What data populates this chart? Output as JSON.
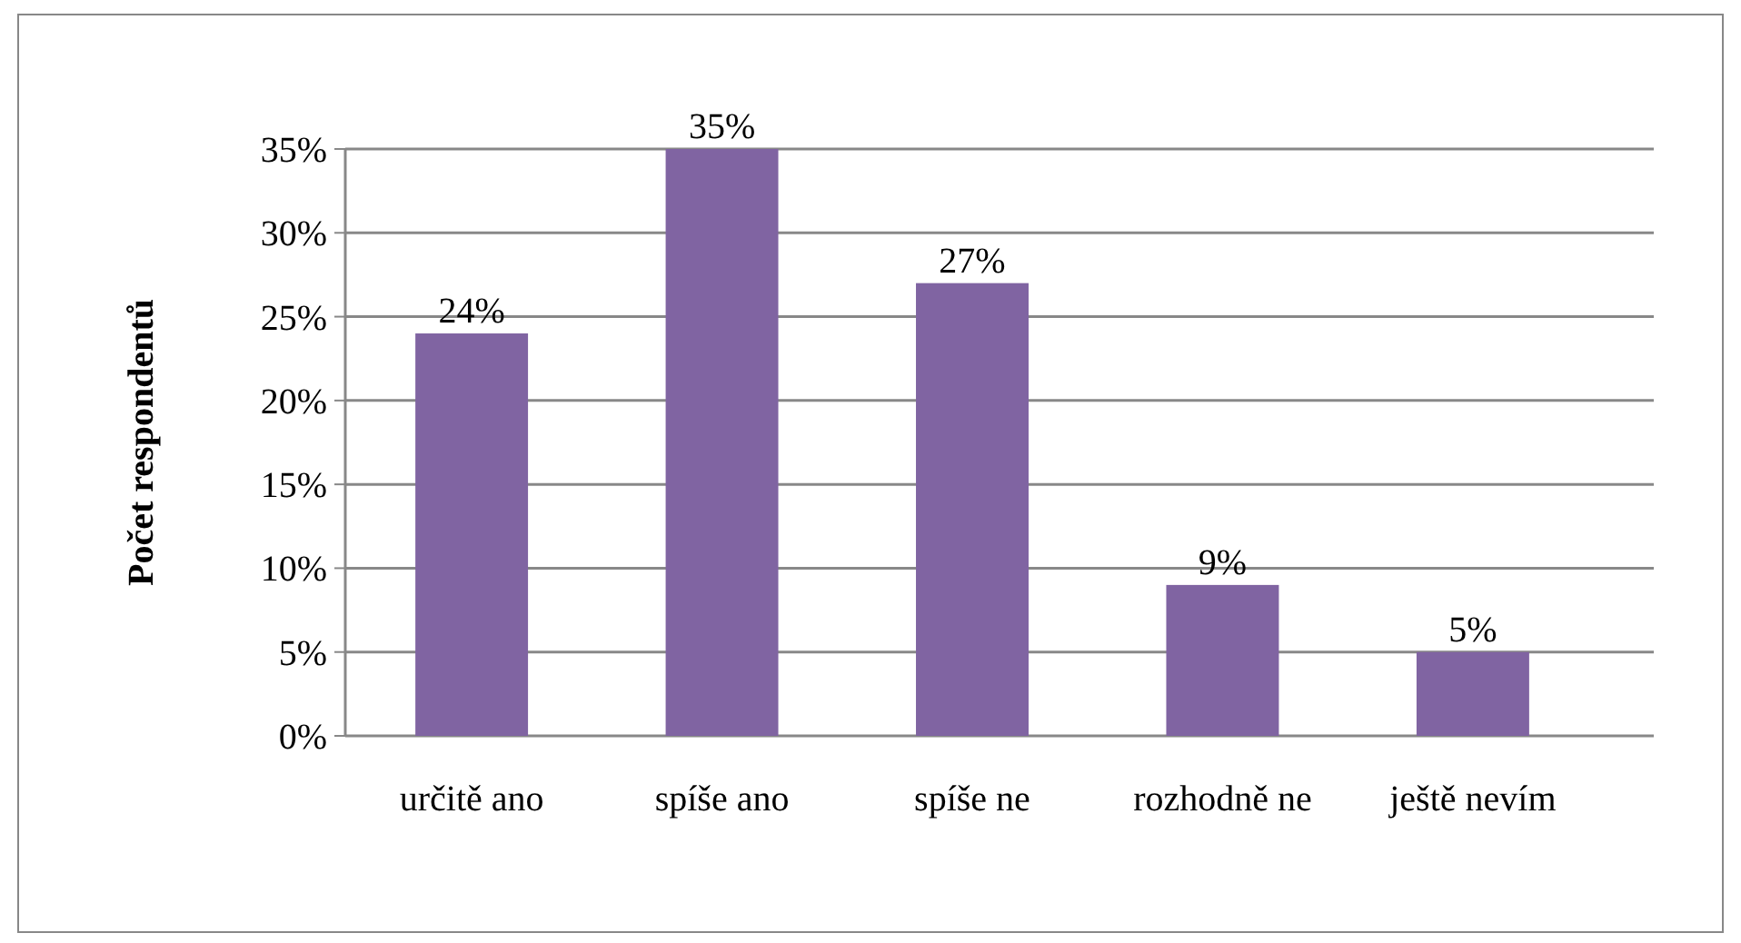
{
  "chart_data": {
    "type": "bar",
    "ylabel": "Počet respondentů",
    "categories": [
      "určitě ano",
      "spíše ano",
      "spíše ne",
      "rozhodně ne",
      "ještě nevím"
    ],
    "values": [
      24,
      35,
      27,
      9,
      5
    ],
    "value_labels": [
      "24%",
      "35%",
      "27%",
      "9%",
      "5%"
    ],
    "color": "#8064a2",
    "ylim": [
      0,
      35
    ],
    "yticks": [
      {
        "value": 0,
        "label": "0%"
      },
      {
        "value": 5,
        "label": "5%"
      },
      {
        "value": 10,
        "label": "10%"
      },
      {
        "value": 15,
        "label": "15%"
      },
      {
        "value": 20,
        "label": "20%"
      },
      {
        "value": 25,
        "label": "25%"
      },
      {
        "value": 30,
        "label": "30%"
      },
      {
        "value": 35,
        "label": "35%"
      }
    ],
    "grid": "y"
  }
}
